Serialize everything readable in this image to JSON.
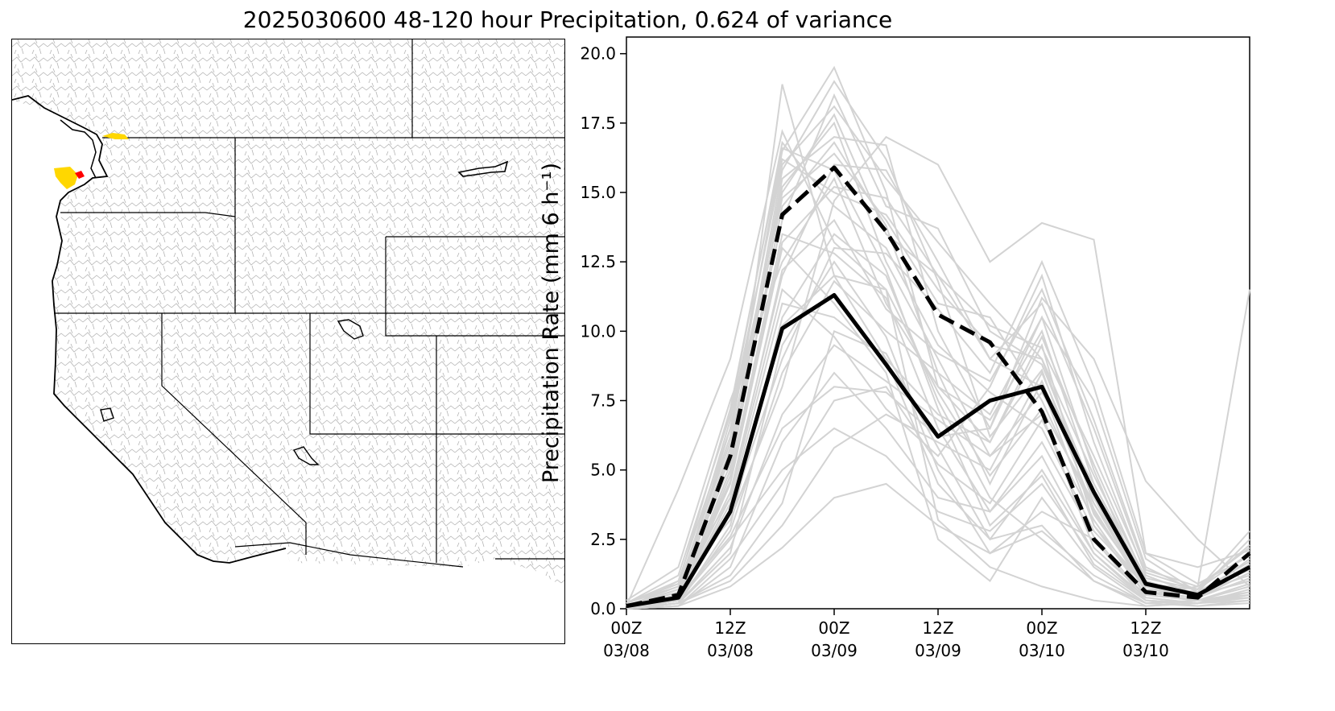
{
  "figure": {
    "title": "2025030600 48-120 hour Precipitation, 0.624 of variance"
  },
  "map": {
    "region": "Western United States",
    "basins_color": "#b0b0b0",
    "state_border_color": "#000000",
    "highlights": [
      {
        "area": "Olympic Peninsula coast",
        "color": "#ffd700"
      },
      {
        "area": "Strait of Juan de Fuca",
        "color": "#ffd700"
      },
      {
        "area": "Northwest Washington",
        "color": "#ff0000"
      }
    ]
  },
  "chart_data": {
    "type": "line",
    "title": "",
    "xlabel": "",
    "ylabel": "Precipitation Rate (mm 6 h⁻¹)",
    "ylim": [
      0,
      20.6
    ],
    "xlim": [
      0,
      12
    ],
    "yticks": [
      0.0,
      2.5,
      5.0,
      7.5,
      10.0,
      12.5,
      15.0,
      17.5,
      20.0
    ],
    "ytick_labels": [
      "0.0",
      "2.5",
      "5.0",
      "7.5",
      "10.0",
      "12.5",
      "15.0",
      "17.5",
      "20.0"
    ],
    "xticks": [
      0,
      2,
      4,
      6,
      8,
      10
    ],
    "xtick_labels": [
      [
        "00Z",
        "03/08"
      ],
      [
        "12Z",
        "03/08"
      ],
      [
        "00Z",
        "03/09"
      ],
      [
        "12Z",
        "03/09"
      ],
      [
        "00Z",
        "03/10"
      ],
      [
        "12Z",
        "03/10"
      ]
    ],
    "x": [
      0,
      1,
      2,
      3,
      4,
      5,
      6,
      7,
      8,
      9,
      10,
      11,
      12
    ],
    "grid": false,
    "series": [
      {
        "style": "solid-black",
        "color": "#000000",
        "values": [
          0.1,
          0.4,
          3.5,
          10.1,
          11.3,
          8.8,
          6.2,
          7.5,
          8.0,
          4.2,
          0.9,
          0.5,
          1.5
        ]
      },
      {
        "style": "dashed-black",
        "color": "#000000",
        "values": [
          0.1,
          0.5,
          5.5,
          14.2,
          15.9,
          13.6,
          10.6,
          9.6,
          7.1,
          2.5,
          0.6,
          0.4,
          2.0
        ]
      }
    ],
    "ensemble_color": "#d3d3d3",
    "ensemble": [
      [
        0.0,
        0.3,
        5.0,
        18.9,
        12.0,
        9.0,
        4.5,
        2.5,
        3.0,
        1.0,
        0.2,
        0.3,
        0.4
      ],
      [
        0.2,
        0.8,
        6.2,
        16.5,
        19.5,
        15.0,
        8.0,
        6.0,
        9.5,
        3.0,
        0.8,
        0.5,
        1.0
      ],
      [
        0.1,
        4.3,
        9.0,
        17.2,
        13.2,
        11.5,
        3.2,
        1.5,
        0.8,
        0.3,
        0.1,
        0.2,
        0.3
      ],
      [
        0.0,
        1.0,
        3.2,
        8.0,
        14.7,
        17.0,
        16.0,
        12.5,
        13.9,
        13.3,
        2.0,
        1.5,
        2.1
      ],
      [
        0.0,
        0.4,
        6.5,
        15.0,
        17.8,
        13.5,
        12.0,
        9.0,
        8.0,
        3.0,
        0.5,
        0.8,
        11.5
      ],
      [
        0.3,
        1.5,
        7.5,
        12.5,
        15.5,
        11.0,
        8.0,
        6.8,
        10.0,
        4.5,
        1.0,
        0.4,
        1.5
      ],
      [
        0.0,
        0.2,
        2.0,
        9.5,
        12.5,
        9.8,
        5.0,
        2.0,
        3.5,
        2.5,
        0.3,
        0.1,
        0.2
      ],
      [
        0.1,
        0.6,
        5.8,
        14.8,
        16.4,
        14.0,
        11.0,
        10.5,
        7.5,
        3.5,
        0.7,
        0.6,
        2.5
      ],
      [
        0.0,
        0.3,
        4.5,
        13.0,
        11.0,
        8.5,
        2.5,
        1.0,
        4.0,
        1.5,
        0.2,
        0.3,
        0.5
      ],
      [
        0.2,
        0.9,
        4.0,
        11.5,
        9.8,
        7.2,
        5.5,
        8.0,
        12.0,
        6.0,
        1.2,
        0.5,
        1.0
      ],
      [
        0.0,
        0.1,
        1.5,
        6.0,
        8.5,
        6.5,
        4.0,
        3.5,
        5.5,
        2.0,
        0.4,
        0.2,
        0.6
      ],
      [
        0.1,
        0.5,
        6.8,
        16.0,
        18.1,
        15.5,
        13.2,
        11.0,
        9.0,
        3.8,
        0.9,
        0.7,
        2.8
      ],
      [
        0.0,
        0.2,
        3.0,
        10.5,
        13.5,
        12.0,
        7.5,
        4.0,
        2.5,
        1.0,
        0.1,
        0.2,
        0.4
      ],
      [
        0.1,
        0.7,
        5.2,
        15.5,
        17.0,
        16.7,
        10.0,
        6.5,
        10.5,
        5.0,
        0.6,
        0.4,
        1.8
      ],
      [
        0.0,
        0.3,
        2.5,
        5.0,
        6.5,
        5.5,
        3.5,
        2.8,
        4.5,
        1.8,
        0.3,
        0.2,
        0.5
      ],
      [
        0.2,
        1.2,
        7.0,
        16.8,
        14.5,
        13.0,
        9.5,
        7.8,
        6.5,
        2.8,
        0.8,
        0.6,
        1.2
      ],
      [
        0.0,
        0.2,
        1.0,
        3.0,
        5.8,
        7.0,
        6.0,
        5.0,
        8.5,
        4.0,
        0.6,
        0.3,
        0.8
      ],
      [
        0.1,
        0.4,
        4.2,
        12.0,
        16.0,
        15.8,
        12.5,
        9.0,
        11.0,
        6.5,
        1.4,
        0.8,
        2.2
      ],
      [
        0.0,
        0.1,
        0.8,
        2.2,
        4.0,
        4.5,
        3.0,
        2.0,
        2.8,
        1.2,
        0.2,
        0.1,
        0.3
      ],
      [
        0.1,
        0.5,
        5.5,
        14.0,
        18.5,
        14.5,
        13.7,
        10.0,
        8.8,
        4.2,
        0.7,
        0.5,
        1.6
      ],
      [
        0.0,
        0.3,
        3.8,
        11.0,
        10.5,
        9.0,
        7.0,
        6.0,
        9.8,
        5.2,
        1.0,
        0.4,
        1.1
      ],
      [
        0.1,
        0.8,
        6.0,
        15.2,
        17.5,
        12.5,
        9.0,
        5.5,
        7.0,
        2.2,
        0.5,
        0.3,
        0.9
      ],
      [
        0.0,
        0.2,
        2.8,
        8.5,
        11.8,
        10.0,
        8.5,
        7.0,
        10.5,
        7.5,
        1.8,
        0.6,
        1.4
      ],
      [
        0.2,
        1.0,
        6.5,
        16.2,
        15.0,
        14.2,
        11.5,
        9.5,
        9.0,
        4.8,
        1.1,
        0.7,
        2.0
      ],
      [
        0.0,
        0.3,
        4.8,
        13.5,
        12.8,
        11.2,
        6.5,
        3.5,
        6.0,
        2.6,
        0.4,
        0.2,
        0.7
      ],
      [
        0.1,
        0.6,
        3.5,
        9.0,
        13.0,
        12.8,
        10.8,
        8.5,
        12.5,
        8.0,
        2.0,
        0.9,
        1.9
      ],
      [
        0.0,
        0.1,
        1.8,
        4.5,
        7.5,
        8.0,
        5.2,
        3.8,
        6.8,
        3.2,
        0.5,
        0.3,
        0.6
      ],
      [
        0.1,
        0.4,
        5.0,
        14.5,
        16.8,
        13.8,
        8.5,
        4.5,
        8.2,
        3.6,
        0.6,
        0.4,
        1.3
      ],
      [
        0.0,
        0.2,
        2.2,
        7.0,
        9.5,
        8.2,
        6.8,
        5.5,
        7.8,
        4.5,
        0.9,
        0.5,
        1.0
      ],
      [
        0.2,
        0.9,
        7.2,
        16.6,
        15.8,
        12.2,
        7.2,
        3.0,
        4.8,
        1.6,
        0.3,
        0.2,
        0.5
      ],
      [
        0.0,
        0.3,
        4.0,
        12.2,
        14.0,
        10.8,
        9.2,
        8.2,
        11.5,
        6.8,
        1.5,
        0.6,
        1.7
      ],
      [
        0.1,
        0.5,
        4.6,
        13.2,
        15.2,
        14.8,
        12.0,
        10.2,
        9.4,
        5.5,
        1.3,
        0.7,
        2.3
      ],
      [
        0.0,
        0.2,
        1.2,
        3.8,
        10.0,
        9.2,
        5.8,
        2.5,
        5.0,
        2.0,
        0.3,
        0.2,
        0.4
      ],
      [
        0.1,
        0.7,
        5.6,
        15.8,
        19.0,
        16.2,
        11.8,
        6.2,
        8.6,
        3.4,
        0.8,
        0.5,
        1.5
      ],
      [
        0.0,
        0.3,
        3.4,
        10.2,
        12.0,
        11.5,
        7.8,
        4.8,
        7.2,
        3.8,
        0.6,
        0.3,
        0.9
      ],
      [
        0.1,
        0.4,
        2.6,
        6.5,
        8.0,
        7.8,
        6.2,
        6.5,
        11.2,
        9.0,
        4.6,
        2.5,
        0.8
      ]
    ]
  }
}
